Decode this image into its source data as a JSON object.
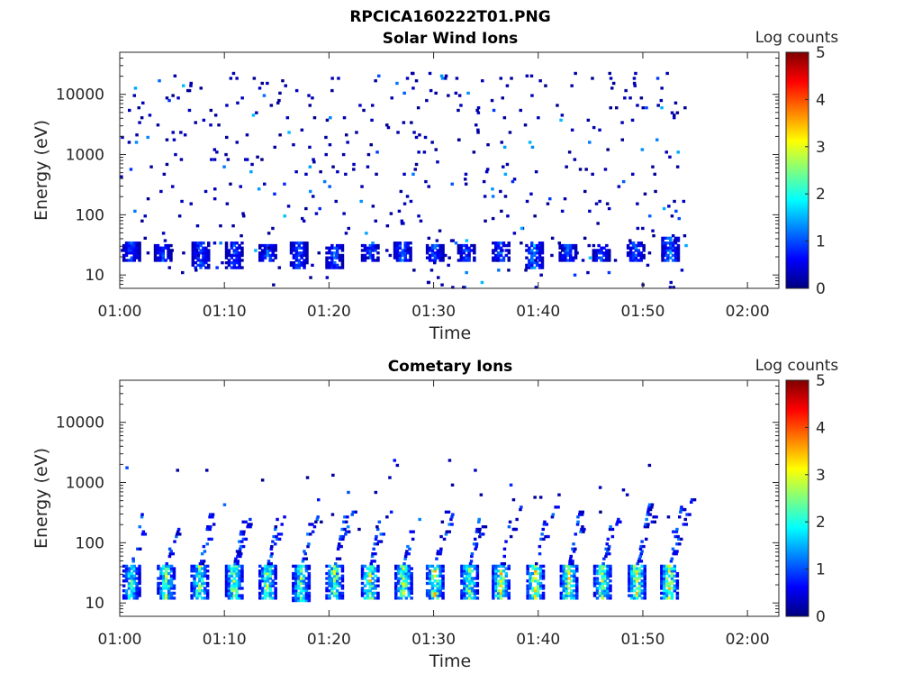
{
  "figure_title": "RPCICA160222T01.PNG",
  "colormap": [
    "#00007f",
    "#0000ff",
    "#007fff",
    "#00ffff",
    "#7fff7f",
    "#ffff00",
    "#ff7f00",
    "#ff0000",
    "#7f0000"
  ],
  "chart_data": [
    {
      "type": "heatmap",
      "title": "Solar Wind Ions",
      "xlabel": "Time",
      "ylabel": "Energy (eV)",
      "x_ticks": [
        "01:00",
        "01:10",
        "01:20",
        "01:30",
        "01:40",
        "01:50",
        "02:00"
      ],
      "x_range_minutes": [
        0,
        63
      ],
      "y_scale": "log",
      "y_ticks": [
        "10",
        "100",
        "1000",
        "10000"
      ],
      "y_range": [
        6,
        50000
      ],
      "colorbar": {
        "label": "Log counts",
        "ticks": [
          "0",
          "1",
          "2",
          "3",
          "4",
          "5"
        ],
        "range": [
          0,
          5
        ]
      },
      "data_extent_minutes": [
        0,
        54
      ],
      "bursts": [
        {
          "t": 1.0,
          "e_lo": 18,
          "e_hi": 35,
          "level": 1.0
        },
        {
          "t": 4.0,
          "e_lo": 18,
          "e_hi": 30,
          "level": 1.0
        },
        {
          "t": 7.6,
          "e_lo": 13,
          "e_hi": 35,
          "level": 1.1
        },
        {
          "t": 10.8,
          "e_lo": 13,
          "e_hi": 35,
          "level": 1.0
        },
        {
          "t": 14.0,
          "e_lo": 18,
          "e_hi": 30,
          "level": 1.1
        },
        {
          "t": 17.0,
          "e_lo": 13,
          "e_hi": 35,
          "level": 1.0
        },
        {
          "t": 20.4,
          "e_lo": 13,
          "e_hi": 30,
          "level": 1.1
        },
        {
          "t": 23.8,
          "e_lo": 18,
          "e_hi": 30,
          "level": 1.0
        },
        {
          "t": 26.9,
          "e_lo": 18,
          "e_hi": 35,
          "level": 1.2
        },
        {
          "t": 30.0,
          "e_lo": 18,
          "e_hi": 30,
          "level": 1.1
        },
        {
          "t": 33.0,
          "e_lo": 18,
          "e_hi": 30,
          "level": 1.0
        },
        {
          "t": 36.3,
          "e_lo": 18,
          "e_hi": 35,
          "level": 1.1
        },
        {
          "t": 39.5,
          "e_lo": 13,
          "e_hi": 35,
          "level": 1.4
        },
        {
          "t": 42.7,
          "e_lo": 18,
          "e_hi": 30,
          "level": 1.1
        },
        {
          "t": 45.9,
          "e_lo": 18,
          "e_hi": 30,
          "level": 1.0
        },
        {
          "t": 49.2,
          "e_lo": 18,
          "e_hi": 35,
          "level": 1.1
        },
        {
          "t": 52.5,
          "e_lo": 18,
          "e_hi": 40,
          "level": 1.3
        }
      ],
      "scatter": {
        "e_lo": 6,
        "e_hi": 25000,
        "max_level": 1.6,
        "count": 470
      }
    },
    {
      "type": "heatmap",
      "title": "Cometary Ions",
      "xlabel": "Time",
      "ylabel": "Energy (eV)",
      "x_ticks": [
        "01:00",
        "01:10",
        "01:20",
        "01:30",
        "01:40",
        "01:50",
        "02:00"
      ],
      "x_range_minutes": [
        0,
        63
      ],
      "y_scale": "log",
      "y_ticks": [
        "10",
        "100",
        "1000",
        "10000"
      ],
      "y_range": [
        6,
        50000
      ],
      "colorbar": {
        "label": "Log counts",
        "ticks": [
          "0",
          "1",
          "2",
          "3",
          "4",
          "5"
        ],
        "range": [
          0,
          5
        ]
      },
      "data_extent_minutes": [
        0,
        54
      ],
      "bursts": [
        {
          "t": 1.0,
          "e_lo": 12,
          "e_hi": 40,
          "e_peak": 300,
          "level": 2.2
        },
        {
          "t": 4.3,
          "e_lo": 12,
          "e_hi": 40,
          "e_peak": 180,
          "level": 2.5
        },
        {
          "t": 7.5,
          "e_lo": 12,
          "e_hi": 40,
          "e_peak": 300,
          "level": 2.4
        },
        {
          "t": 10.8,
          "e_lo": 12,
          "e_hi": 40,
          "e_peak": 250,
          "level": 2.6
        },
        {
          "t": 14.0,
          "e_lo": 12,
          "e_hi": 40,
          "e_peak": 260,
          "level": 2.5
        },
        {
          "t": 17.2,
          "e_lo": 11,
          "e_hi": 40,
          "e_peak": 300,
          "level": 2.4
        },
        {
          "t": 20.4,
          "e_lo": 12,
          "e_hi": 40,
          "e_peak": 320,
          "level": 2.6
        },
        {
          "t": 23.8,
          "e_lo": 12,
          "e_hi": 40,
          "e_peak": 300,
          "level": 2.8
        },
        {
          "t": 27.0,
          "e_lo": 12,
          "e_hi": 40,
          "e_peak": 250,
          "level": 2.6
        },
        {
          "t": 30.0,
          "e_lo": 12,
          "e_hi": 40,
          "e_peak": 330,
          "level": 2.9
        },
        {
          "t": 33.3,
          "e_lo": 12,
          "e_hi": 40,
          "e_peak": 250,
          "level": 2.6
        },
        {
          "t": 36.3,
          "e_lo": 12,
          "e_hi": 40,
          "e_peak": 450,
          "level": 2.9
        },
        {
          "t": 39.6,
          "e_lo": 12,
          "e_hi": 40,
          "e_peak": 380,
          "level": 3.0
        },
        {
          "t": 42.8,
          "e_lo": 12,
          "e_hi": 40,
          "e_peak": 400,
          "level": 2.8
        },
        {
          "t": 46.0,
          "e_lo": 12,
          "e_hi": 40,
          "e_peak": 280,
          "level": 2.7
        },
        {
          "t": 49.3,
          "e_lo": 12,
          "e_hi": 40,
          "e_peak": 500,
          "level": 2.8
        },
        {
          "t": 52.4,
          "e_lo": 12,
          "e_hi": 40,
          "e_peak": 550,
          "level": 2.9
        }
      ],
      "scatter": {
        "e_lo": 150,
        "e_hi": 2500,
        "max_level": 1.2,
        "count": 40
      }
    }
  ]
}
